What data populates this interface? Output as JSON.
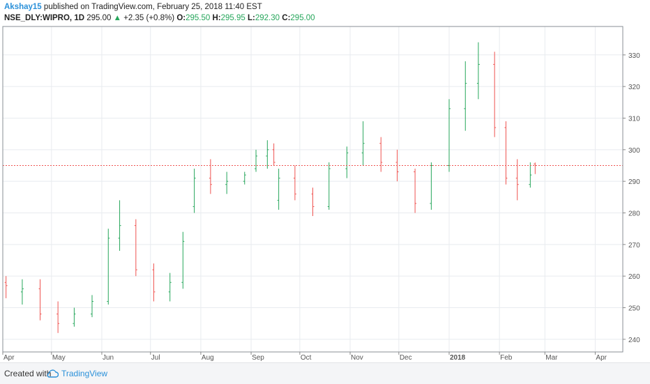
{
  "header": {
    "author": "Akshay15",
    "published": "published on TradingView.com, February 25, 2018 11:40 EST",
    "symbol": "NSE_DLY:WIPRO, 1D",
    "price": "295.00",
    "arrow": "▲",
    "change": "+2.35 (+0.8%)",
    "o_label": "O:",
    "o_value": "295.50",
    "h_label": "H:",
    "h_value": "295.95",
    "l_label": "L:",
    "l_value": "292.30",
    "c_label": "C:",
    "c_value": "295.00"
  },
  "footer": {
    "created_with": "Created with",
    "brand": "TradingView"
  },
  "colors": {
    "up": "#26a65b",
    "down": "#ef5350",
    "price_line": "#ef5350",
    "grid": "#e8ebef",
    "axis_text": "#555555"
  },
  "chart_data": {
    "type": "ohlc",
    "ylim": [
      236,
      339
    ],
    "y_ticks": [
      240,
      250,
      260,
      270,
      280,
      290,
      300,
      310,
      320,
      330
    ],
    "x_ticks": [
      "Apr",
      "May",
      "Jun",
      "Jul",
      "Aug",
      "Sep",
      "Oct",
      "Nov",
      "Dec",
      "2018",
      "Feb",
      "Mar",
      "Apr"
    ],
    "last_price": 295.0,
    "grid": true,
    "series": [
      {
        "name": "",
        "x": "2017-04-03",
        "open": 258,
        "high": 260,
        "low": 253,
        "close": 257
      },
      {
        "name": "",
        "x": "2017-04-13",
        "open": 255,
        "high": 259,
        "low": 251,
        "close": 256
      },
      {
        "name": "",
        "x": "2017-04-24",
        "open": 256,
        "high": 259,
        "low": 246,
        "close": 248
      },
      {
        "name": "",
        "x": "2017-05-05",
        "open": 248,
        "high": 252,
        "low": 242,
        "close": 245
      },
      {
        "name": "",
        "x": "2017-05-15",
        "open": 245,
        "high": 250,
        "low": 244,
        "close": 248
      },
      {
        "name": "",
        "x": "2017-05-26",
        "open": 248,
        "high": 254,
        "low": 247,
        "close": 252
      },
      {
        "name": "",
        "x": "2017-06-05",
        "open": 252,
        "high": 275,
        "low": 251,
        "close": 272
      },
      {
        "name": "",
        "x": "2017-06-12",
        "open": 272,
        "high": 284,
        "low": 268,
        "close": 276
      },
      {
        "name": "",
        "x": "2017-06-22",
        "open": 276,
        "high": 278,
        "low": 260,
        "close": 262
      },
      {
        "name": "",
        "x": "2017-07-03",
        "open": 262,
        "high": 264,
        "low": 252,
        "close": 255
      },
      {
        "name": "",
        "x": "2017-07-13",
        "open": 255,
        "high": 261,
        "low": 252,
        "close": 258
      },
      {
        "name": "",
        "x": "2017-07-21",
        "open": 258,
        "high": 274,
        "low": 256,
        "close": 271
      },
      {
        "name": "",
        "x": "2017-07-28",
        "open": 282,
        "high": 294,
        "low": 280,
        "close": 291
      },
      {
        "name": "",
        "x": "2017-08-07",
        "open": 291,
        "high": 297,
        "low": 286,
        "close": 289
      },
      {
        "name": "",
        "x": "2017-08-17",
        "open": 289,
        "high": 293,
        "low": 286,
        "close": 290
      },
      {
        "name": "",
        "x": "2017-08-28",
        "open": 290,
        "high": 293,
        "low": 289,
        "close": 292
      },
      {
        "name": "",
        "x": "2017-09-04",
        "open": 294,
        "high": 300,
        "low": 293,
        "close": 298
      },
      {
        "name": "",
        "x": "2017-09-11",
        "open": 298,
        "high": 303,
        "low": 294,
        "close": 300
      },
      {
        "name": "",
        "x": "2017-09-15",
        "open": 300,
        "high": 302,
        "low": 295,
        "close": 296
      },
      {
        "name": "",
        "x": "2017-09-18",
        "open": 284,
        "high": 294,
        "low": 281,
        "close": 291
      },
      {
        "name": "",
        "x": "2017-09-28",
        "open": 291,
        "high": 295,
        "low": 284,
        "close": 286
      },
      {
        "name": "",
        "x": "2017-10-09",
        "open": 286,
        "high": 288,
        "low": 279,
        "close": 282
      },
      {
        "name": "",
        "x": "2017-10-19",
        "open": 282,
        "high": 296,
        "low": 281,
        "close": 294
      },
      {
        "name": "",
        "x": "2017-10-30",
        "open": 294,
        "high": 301,
        "low": 291,
        "close": 299
      },
      {
        "name": "",
        "x": "2017-11-09",
        "open": 299,
        "high": 309,
        "low": 295,
        "close": 302
      },
      {
        "name": "",
        "x": "2017-11-20",
        "open": 302,
        "high": 304,
        "low": 293,
        "close": 296
      },
      {
        "name": "",
        "x": "2017-11-30",
        "open": 296,
        "high": 300,
        "low": 290,
        "close": 293
      },
      {
        "name": "",
        "x": "2017-12-11",
        "open": 293,
        "high": 294,
        "low": 280,
        "close": 283
      },
      {
        "name": "",
        "x": "2017-12-21",
        "open": 283,
        "high": 296,
        "low": 281,
        "close": 295
      },
      {
        "name": "",
        "x": "2018-01-01",
        "open": 295,
        "high": 316,
        "low": 293,
        "close": 313
      },
      {
        "name": "",
        "x": "2018-01-11",
        "open": 313,
        "high": 328,
        "low": 306,
        "close": 321
      },
      {
        "name": "",
        "x": "2018-01-19",
        "open": 321,
        "high": 334,
        "low": 316,
        "close": 327
      },
      {
        "name": "",
        "x": "2018-01-29",
        "open": 327,
        "high": 331,
        "low": 304,
        "close": 307
      },
      {
        "name": "",
        "x": "2018-02-05",
        "open": 307,
        "high": 309,
        "low": 289,
        "close": 291
      },
      {
        "name": "",
        "x": "2018-02-12",
        "open": 291,
        "high": 297,
        "low": 284,
        "close": 289
      },
      {
        "name": "",
        "x": "2018-02-20",
        "open": 289,
        "high": 296,
        "low": 288,
        "close": 292
      },
      {
        "name": "",
        "x": "2018-02-23",
        "open": 295.5,
        "high": 295.95,
        "low": 292.3,
        "close": 295.0
      }
    ]
  }
}
